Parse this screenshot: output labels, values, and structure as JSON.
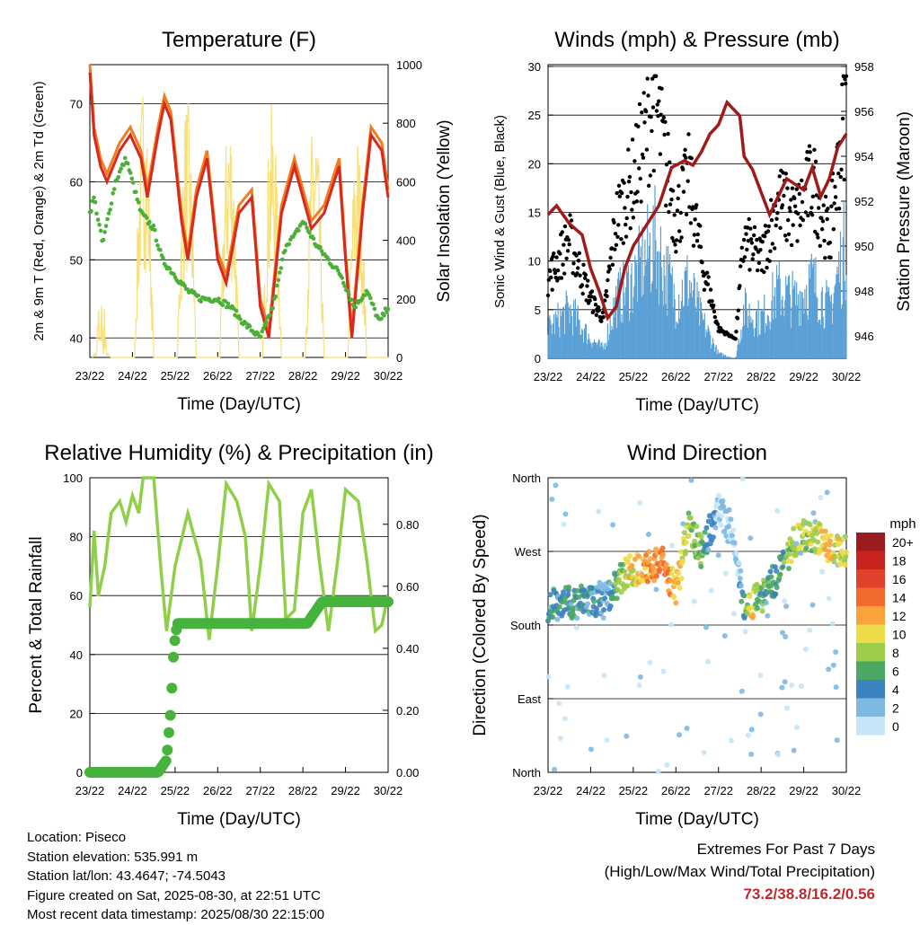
{
  "colors": {
    "red": "#d62a1e",
    "orange": "#f47b20",
    "green": "#4caf38",
    "yellow": "#f7e07c",
    "black": "#000000",
    "blue": "#5aa0d6",
    "maroon": "#a11a1a",
    "rh_line": "#8fcf4b",
    "precip": "#45b33c",
    "extreme": "#c0282d"
  },
  "time_ticks": [
    "23/22",
    "24/22",
    "25/22",
    "26/22",
    "27/22",
    "28/22",
    "29/22",
    "30/22"
  ],
  "charts": {
    "temperature": {
      "title": "Temperature (F)",
      "xlabel": "Time (Day/UTC)",
      "ylabel": "2m & 9m T (Red, Orange) & 2m Td (Green)",
      "y2label": "Solar Insolation (Yellow)",
      "ylim": [
        37.5,
        75
      ],
      "yticks": [
        "40",
        "50",
        "60",
        "70"
      ],
      "y2ticks": [
        "0",
        "200",
        "400",
        "600",
        "800",
        "1000"
      ]
    },
    "winds": {
      "title": "Winds (mph) & Pressure (mb)",
      "xlabel": "Time (Day/UTC)",
      "ylabel": "Sonic Wind & Gust (Blue, Black)",
      "y2label": "Station Pressure (Maroon)",
      "yticks": [
        "0",
        "5",
        "10",
        "15",
        "20",
        "25",
        "30"
      ],
      "y2ticks": [
        "946",
        "948",
        "950",
        "952",
        "954",
        "956",
        "958"
      ]
    },
    "humidity": {
      "title": "Relative Humidity (%) & Precipitation (in)",
      "xlabel": "Time (Day/UTC)",
      "ylabel": "Percent & Total Rainfall",
      "yticks": [
        "0",
        "20",
        "40",
        "60",
        "80",
        "100"
      ],
      "y2ticks": [
        "0.00",
        "0.20",
        "0.40",
        "0.60",
        "0.80"
      ]
    },
    "direction": {
      "title": "Wind Direction",
      "xlabel": "Time (Day/UTC)",
      "ylabel": "Direction (Colored By Speed)",
      "yticks": [
        "North",
        "East",
        "South",
        "West",
        "North"
      ],
      "legend_title": "mph",
      "legend_labels": [
        "20+",
        "18",
        "16",
        "14",
        "12",
        "10",
        "8",
        "6",
        "4",
        "2",
        "0"
      ],
      "legend_colors": [
        "#9b1b1e",
        "#c8231f",
        "#e0412b",
        "#f26a2c",
        "#f9a33c",
        "#ecdc4a",
        "#9ccc48",
        "#4aa864",
        "#3b82c0",
        "#7db9e3",
        "#c5e6f7"
      ]
    }
  },
  "chart_data": [
    {
      "type": "line",
      "title": "Temperature (F)",
      "x": [
        "23/22",
        "24/22",
        "25/22",
        "26/22",
        "27/22",
        "28/22",
        "29/22",
        "30/22"
      ],
      "series": [
        {
          "name": "2m T",
          "color": "#d62a1e",
          "values": [
            74,
            64,
            71,
            48,
            40,
            56,
            40,
            58
          ]
        },
        {
          "name": "9m T",
          "color": "#f47b20",
          "values": [
            74,
            65,
            72,
            49,
            41,
            57,
            41,
            58
          ]
        },
        {
          "name": "2m Td",
          "color": "#4caf38",
          "values": [
            56,
            63,
            49,
            45,
            40,
            53,
            45,
            44
          ]
        },
        {
          "name": "Solar Insolation",
          "color": "#f7e07c",
          "values": [
            0,
            200,
            980,
            900,
            880,
            870,
            870,
            780
          ]
        }
      ],
      "ylim": [
        37.5,
        75
      ],
      "y2lim": [
        0,
        1000
      ]
    },
    {
      "type": "scatter",
      "title": "Winds (mph) & Pressure (mb)",
      "x": [
        "23/22",
        "24/22",
        "25/22",
        "26/22",
        "27/22",
        "28/22",
        "29/22",
        "30/22"
      ],
      "series": [
        {
          "name": "Sonic Wind",
          "color": "#5aa0d6",
          "values": [
            3,
            1,
            9,
            12,
            0,
            6,
            8,
            12
          ]
        },
        {
          "name": "Gust",
          "color": "#000000",
          "values": [
            14,
            6,
            20,
            22,
            2,
            14,
            19,
            24
          ]
        },
        {
          "name": "Station Pressure",
          "color": "#a11a1a",
          "values": [
            951.6,
            947.0,
            951.5,
            953.9,
            956.4,
            952.2,
            953.0,
            955.0
          ]
        }
      ],
      "ylim": [
        0,
        30
      ],
      "y2lim": [
        945,
        958
      ]
    },
    {
      "type": "line",
      "title": "Relative Humidity (%) & Precipitation (in)",
      "x": [
        "23/22",
        "24/22",
        "25/22",
        "26/22",
        "27/22",
        "28/22",
        "29/22",
        "30/22"
      ],
      "series": [
        {
          "name": "Relative Humidity",
          "color": "#8fcf4b",
          "values": [
            56,
            90,
            48,
            88,
            50,
            92,
            94,
            60
          ]
        },
        {
          "name": "Total Precipitation",
          "color": "#45b33c",
          "values": [
            0.0,
            0.0,
            0.48,
            0.48,
            0.48,
            0.48,
            0.55,
            0.55
          ]
        }
      ],
      "ylim": [
        0,
        100
      ],
      "y2lim": [
        0,
        0.95
      ]
    },
    {
      "type": "scatter",
      "title": "Wind Direction",
      "x": [
        "23/22",
        "24/22",
        "25/22",
        "26/22",
        "27/22",
        "28/22",
        "29/22",
        "30/22"
      ],
      "series": [
        {
          "name": "Direction",
          "values": [
            "South-Southwest",
            "South-Southwest",
            "West-Southwest",
            "West",
            "Northwest",
            "South-Southwest",
            "West",
            "West"
          ]
        }
      ]
    }
  ],
  "metadata": {
    "location": "Location: Piseco",
    "elevation": "Station elevation: 535.991 m",
    "latlon": "Station lat/lon: 43.4647; -74.5043",
    "created": "Figure created on Sat, 2025-08-30, at 22:51 UTC",
    "recent": "Most recent data timestamp: 2025/08/30 22:15:00"
  },
  "extremes": {
    "title": "Extremes For Past 7 Days",
    "subtitle": "(High/Low/Max Wind/Total Precipitation)",
    "values": "73.2/38.8/16.2/0.56"
  }
}
